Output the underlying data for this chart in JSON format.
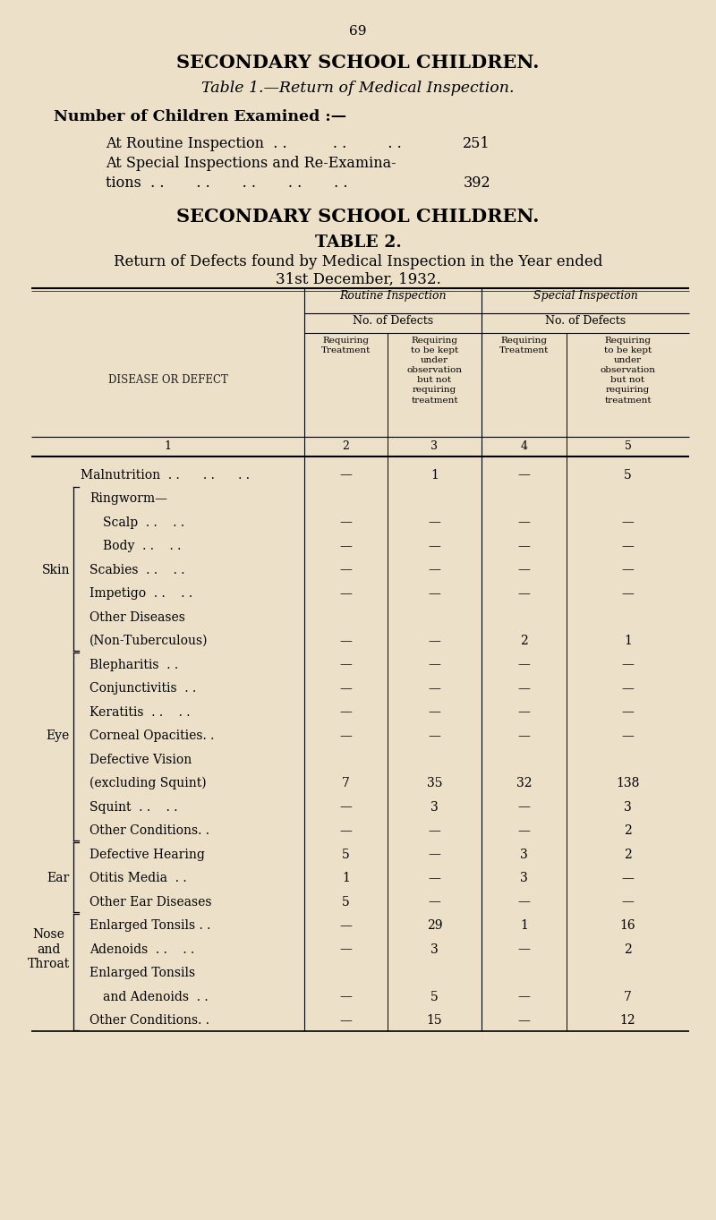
{
  "bg_color": "#ede0c8",
  "page_number": "69",
  "title1": "SECONDARY SCHOOL CHILDREN.",
  "subtitle1": "Table 1.—Return of Medical Inspection.",
  "intro_label": "Number of Children Examined :—",
  "routine_line": "At Routine Inspection  . .          . .         . .    251",
  "routine_label": "At Routine Inspection  . .          . .         . .",
  "routine_value": "251",
  "special_label": "At Special Inspections and Re-Examina-",
  "special_label2": "tions  . .       . .       . .       . .       . .",
  "special_value": "392",
  "title2": "SECONDARY SCHOOL CHILDREN.",
  "subtitle2": "TABLE 2.",
  "subtitle3": "Return of Defects found by Medical Inspection in the Year ended",
  "subtitle4": "31st December, 1932.",
  "col_header_1": "Routine Inspection",
  "col_header_2": "Special Inspection",
  "col_sub1": "No. of Defects",
  "col_sub2": "No. of Defects",
  "col1_label": "DISEASE OR DEFECT",
  "col2_label": "Requiring\nTreatment",
  "col3_label": "Requiring\nto be kept\nunder\nobservation\nbut not\nrequiring\ntreatment",
  "col4_label": "Requiring\nTreatment",
  "col5_label": "Requiring\nto be kept\nunder\nobservation\nbut not\nrequiring\ntreatment",
  "rows": [
    {
      "label1": "Malnutrition  . .      . .      . .",
      "label2": "",
      "c2": "—",
      "c3": "1",
      "c4": "—",
      "c5": "5",
      "group": null,
      "extra_indent": 0
    },
    {
      "label1": "Ringworm—",
      "label2": "",
      "c2": "",
      "c3": "",
      "c4": "",
      "c5": "",
      "group": "skin",
      "extra_indent": 5
    },
    {
      "label1": "Scalp  . .    . .",
      "label2": "",
      "c2": "—",
      "c3": "—",
      "c4": "—",
      "c5": "—",
      "group": "skin",
      "extra_indent": 20
    },
    {
      "label1": "Body  . .    . .",
      "label2": "",
      "c2": "—",
      "c3": "—",
      "c4": "—",
      "c5": "—",
      "group": "skin",
      "extra_indent": 20
    },
    {
      "label1": "Scabies  . .    . .",
      "label2": "",
      "c2": "—",
      "c3": "—",
      "c4": "—",
      "c5": "—",
      "group": "skin",
      "extra_indent": 5
    },
    {
      "label1": "Impetigo  . .    . .",
      "label2": "",
      "c2": "—",
      "c3": "—",
      "c4": "—",
      "c5": "—",
      "group": "skin",
      "extra_indent": 5
    },
    {
      "label1": "Other Diseases",
      "label2": "",
      "c2": "",
      "c3": "",
      "c4": "",
      "c5": "",
      "group": "skin",
      "extra_indent": 5
    },
    {
      "label1": "(Non-Tuberculous)",
      "label2": "",
      "c2": "—",
      "c3": "—",
      "c4": "2",
      "c5": "1",
      "group": "skin",
      "extra_indent": 5
    },
    {
      "label1": "Blepharitis  . .",
      "label2": "",
      "c2": "—",
      "c3": "—",
      "c4": "—",
      "c5": "—",
      "group": "eye",
      "extra_indent": 5
    },
    {
      "label1": "Conjunctivitis  . .",
      "label2": "",
      "c2": "—",
      "c3": "—",
      "c4": "—",
      "c5": "—",
      "group": "eye",
      "extra_indent": 5
    },
    {
      "label1": "Keratitis  . .    . .",
      "label2": "",
      "c2": "—",
      "c3": "—",
      "c4": "—",
      "c5": "—",
      "group": "eye",
      "extra_indent": 5
    },
    {
      "label1": "Corneal Opacities. .",
      "label2": "",
      "c2": "—",
      "c3": "—",
      "c4": "—",
      "c5": "—",
      "group": "eye",
      "extra_indent": 5
    },
    {
      "label1": "Defective Vision",
      "label2": "",
      "c2": "",
      "c3": "",
      "c4": "",
      "c5": "",
      "group": "eye",
      "extra_indent": 5
    },
    {
      "label1": "(excluding Squint)",
      "label2": "",
      "c2": "7",
      "c3": "35",
      "c4": "32",
      "c5": "138",
      "group": "eye",
      "extra_indent": 5
    },
    {
      "label1": "Squint  . .    . .",
      "label2": "",
      "c2": "—",
      "c3": "3",
      "c4": "—",
      "c5": "3",
      "group": "eye",
      "extra_indent": 5
    },
    {
      "label1": "Other Conditions. .",
      "label2": "",
      "c2": "—",
      "c3": "—",
      "c4": "—",
      "c5": "2",
      "group": "eye",
      "extra_indent": 5
    },
    {
      "label1": "Defective Hearing",
      "label2": "",
      "c2": "5",
      "c3": "—",
      "c4": "3",
      "c5": "2",
      "group": "ear",
      "extra_indent": 5
    },
    {
      "label1": "Otitis Media  . .",
      "label2": "",
      "c2": "1",
      "c3": "—",
      "c4": "3",
      "c5": "—",
      "group": "ear",
      "extra_indent": 5
    },
    {
      "label1": "Other Ear Diseases",
      "label2": "",
      "c2": "5",
      "c3": "—",
      "c4": "—",
      "c5": "—",
      "group": "ear",
      "extra_indent": 5
    },
    {
      "label1": "Enlarged Tonsils . .",
      "label2": "",
      "c2": "—",
      "c3": "29",
      "c4": "1",
      "c5": "16",
      "group": "nose",
      "extra_indent": 5
    },
    {
      "label1": "Adenoids  . .    . .",
      "label2": "",
      "c2": "—",
      "c3": "3",
      "c4": "—",
      "c5": "2",
      "group": "nose",
      "extra_indent": 5
    },
    {
      "label1": "Enlarged Tonsils",
      "label2": "",
      "c2": "",
      "c3": "",
      "c4": "",
      "c5": "",
      "group": "nose",
      "extra_indent": 5
    },
    {
      "label1": "and Adenoids  . .",
      "label2": "",
      "c2": "—",
      "c3": "5",
      "c4": "—",
      "c5": "7",
      "group": "nose",
      "extra_indent": 20
    },
    {
      "label1": "Other Conditions. .",
      "label2": "",
      "c2": "—",
      "c3": "15",
      "c4": "—",
      "c5": "12",
      "group": "nose",
      "extra_indent": 5
    }
  ],
  "groups": {
    "skin": {
      "first_row": 1,
      "last_row": 7,
      "label": "Skin",
      "label_row_idx": 4
    },
    "eye": {
      "first_row": 8,
      "last_row": 15,
      "label": "Eye",
      "label_row_idx": 11
    },
    "ear": {
      "first_row": 16,
      "last_row": 18,
      "label": "Ear",
      "label_row_idx": 17
    },
    "nose": {
      "first_row": 19,
      "last_row": 23,
      "label": "Nose\nand\nThroat",
      "label_row_idx": 20
    }
  }
}
